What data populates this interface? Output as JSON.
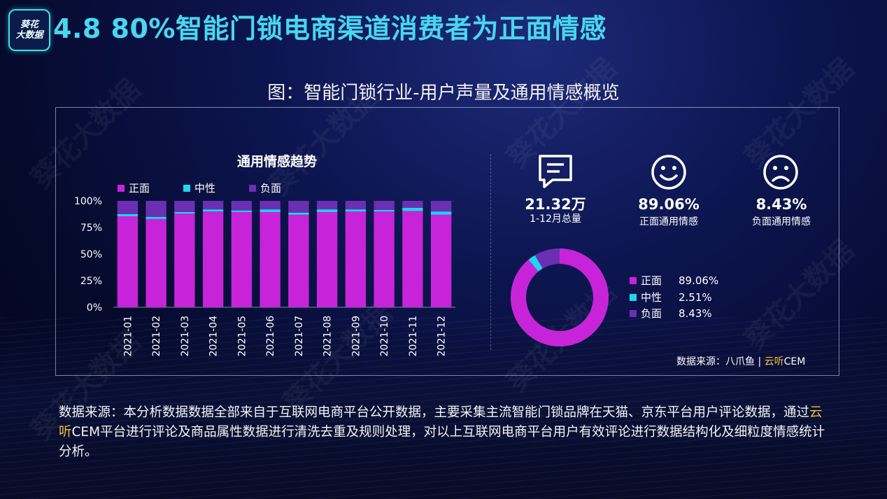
{
  "logo_text": [
    "葵花",
    "大数据"
  ],
  "title": "4.8 80%智能门锁电商渠道消费者为正面情感",
  "subtitle": "图：智能门锁行业-用户声量及通用情感概览",
  "watermark": "葵花大数据",
  "colors": {
    "positive": "#c724d9",
    "neutral": "#1ed6ee",
    "negative": "#6a2fb3",
    "title": "#48d6f0",
    "accent": "#f2c23a"
  },
  "chart_data": [
    {
      "type": "bar",
      "stacked": true,
      "title": "通用情感趋势",
      "categories": [
        "2021-01",
        "2021-02",
        "2021-03",
        "2021-04",
        "2021-05",
        "2021-06",
        "2021-07",
        "2021-08",
        "2021-09",
        "2021-10",
        "2021-11",
        "2021-12"
      ],
      "series": [
        {
          "name": "正面",
          "values": [
            85.5,
            83,
            88,
            90,
            89.5,
            89.5,
            87,
            89.5,
            90,
            90,
            90.5,
            87
          ]
        },
        {
          "name": "中性",
          "values": [
            2,
            2,
            1.5,
            2,
            1.5,
            2.5,
            2,
            2.5,
            2,
            1.5,
            3,
            3
          ]
        },
        {
          "name": "负面",
          "values": [
            12.5,
            15,
            10.5,
            8,
            9,
            8,
            11,
            8,
            8,
            8.5,
            6.5,
            10
          ]
        }
      ],
      "y_ticks": [
        "0%",
        "25%",
        "50%",
        "75%",
        "100%"
      ],
      "ylim": [
        0,
        100
      ],
      "legend_position": "top-left"
    },
    {
      "type": "pie",
      "donut": true,
      "labels": [
        "正面",
        "中性",
        "负面"
      ],
      "values": [
        89.06,
        2.51,
        8.43
      ],
      "value_labels": [
        "89.06%",
        "2.51%",
        "8.43%"
      ],
      "legend_position": "right"
    }
  ],
  "kpis": [
    {
      "value": "21.32万",
      "label": "1-12月总量",
      "icon": "chat-icon"
    },
    {
      "value": "89.06%",
      "label": "正面通用情感",
      "icon": "smile-icon"
    },
    {
      "value": "8.43%",
      "label": "负面通用情感",
      "icon": "frown-icon"
    }
  ],
  "source_small": {
    "prefix": "数据来源：八爪鱼 | ",
    "accent": "云听",
    "suffix": "CEM"
  },
  "note": {
    "part1": "数据来源：本分析数据数据全部来自于互联网电商平台公开数据，主要采集主流智能门锁品牌在天猫、京东平台用户评论数据，通过",
    "accent": "云听",
    "part2": "CEM平台进行评论及商品属性数据进行清洗去重及规则处理，对以上互联网电商平台用户有效评论进行数据结构化及细粒度情感统计分析。"
  }
}
